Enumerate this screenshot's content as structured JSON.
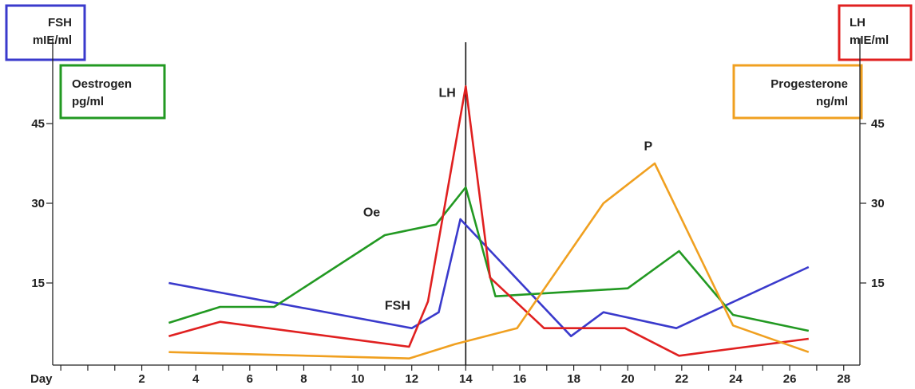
{
  "chart_data": {
    "type": "line",
    "xlabel": "Day",
    "x_ticks": [
      2,
      4,
      6,
      8,
      10,
      12,
      14,
      16,
      18,
      20,
      22,
      24,
      26,
      28
    ],
    "xlim": [
      -1.3,
      28.6
    ],
    "left_axis": {
      "ticks": [
        15,
        30,
        45
      ],
      "ylim": [
        0,
        45
      ]
    },
    "right_axis": {
      "ticks": [
        15,
        30,
        45
      ],
      "ylim": [
        0,
        45
      ]
    },
    "ovulation_marker_day": 14,
    "axis_boxes": [
      {
        "id": "fsh",
        "line1": "FSH",
        "line2": "mIE/ml",
        "color": "#3a3acc"
      },
      {
        "id": "oestrogen",
        "line1": "Oestrogen",
        "line2": "pg/ml",
        "color": "#229922"
      },
      {
        "id": "lh",
        "line1": "LH",
        "line2": "mIE/ml",
        "color": "#e02020"
      },
      {
        "id": "progesterone",
        "line1": "Progesterone",
        "line2": "ng/ml",
        "color": "#f0a020"
      }
    ],
    "series": [
      {
        "name": "FSH",
        "color": "#3a3acc",
        "points": [
          [
            3,
            15
          ],
          [
            12,
            6.5
          ],
          [
            13,
            9.5
          ],
          [
            13.8,
            27
          ],
          [
            17.9,
            5
          ],
          [
            19.1,
            9.5
          ],
          [
            21.8,
            6.5
          ],
          [
            26.7,
            18
          ]
        ]
      },
      {
        "name": "Oe",
        "color": "#229922",
        "points": [
          [
            3,
            7.5
          ],
          [
            4.9,
            10.5
          ],
          [
            6.9,
            10.5
          ],
          [
            11,
            24
          ],
          [
            12.9,
            26
          ],
          [
            14,
            33
          ],
          [
            15.1,
            12.5
          ],
          [
            20,
            14
          ],
          [
            21.9,
            21
          ],
          [
            23.9,
            9
          ],
          [
            26.7,
            6
          ]
        ]
      },
      {
        "name": "LH",
        "color": "#e02020",
        "points": [
          [
            3,
            5
          ],
          [
            4.9,
            7.7
          ],
          [
            11.9,
            3
          ],
          [
            12.6,
            11.5
          ],
          [
            14,
            52
          ],
          [
            14.9,
            16
          ],
          [
            16.9,
            6.5
          ],
          [
            19.9,
            6.5
          ],
          [
            21.9,
            1.3
          ],
          [
            26.7,
            4.5
          ]
        ]
      },
      {
        "name": "P",
        "color": "#f0a020",
        "points": [
          [
            3,
            2
          ],
          [
            11.9,
            0.8
          ],
          [
            13.6,
            3.5
          ],
          [
            15.9,
            6.5
          ],
          [
            19.1,
            30
          ],
          [
            21,
            37.5
          ],
          [
            23.9,
            7
          ],
          [
            26.7,
            2
          ]
        ]
      }
    ],
    "annotations": [
      {
        "text": "LH",
        "x": 13,
        "y": 50
      },
      {
        "text": "Oe",
        "x": 10.2,
        "y": 27.5
      },
      {
        "text": "FSH",
        "x": 11,
        "y": 10
      },
      {
        "text": "P",
        "x": 20.6,
        "y": 40
      }
    ]
  }
}
